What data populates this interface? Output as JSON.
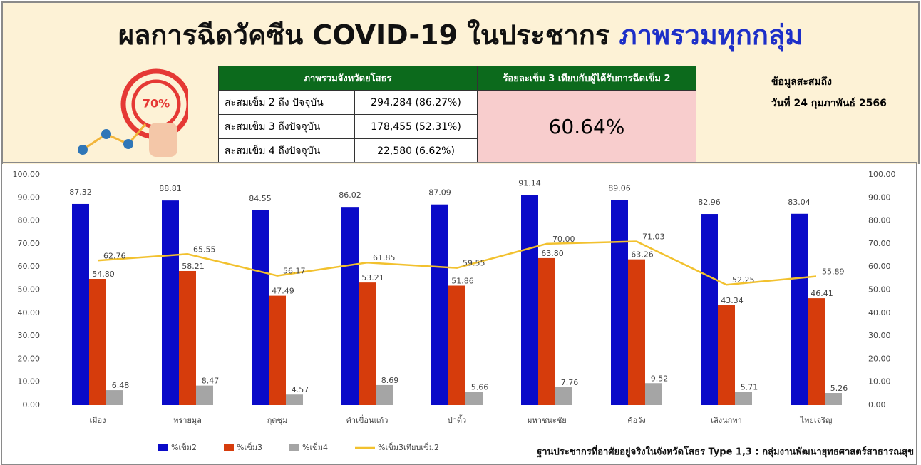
{
  "header": {
    "title_main": "ผลการฉีดวัคซีน COVID-19 ในประชากร",
    "title_highlight": "ภาพรวมทุกกลุ่ม",
    "icon_text": "70%",
    "date_line1": "ข้อมูลสะสมถึง",
    "date_line2": "วันที่ 24 กุมภาพันธ์ 2566"
  },
  "table": {
    "header": [
      "ภาพรวมจังหวัดยโสธร",
      "ร้อยละเข็ม 3 เทียบกับผู้ได้รับการฉีดเข็ม 2"
    ],
    "rows": [
      [
        "สะสมเข็ม 2 ถึง ปัจจุบัน",
        "294,284 (86.27%)"
      ],
      [
        "สะสมเข็ม 3 ถึงปัจจุบัน",
        "178,455 (52.31%)"
      ],
      [
        "สะสมเข็ม 4 ถึงปัจจุบัน",
        "22,580 (6.62%)"
      ]
    ],
    "highlight": "60.64%"
  },
  "chart_data": {
    "type": "bar",
    "categories": [
      "เมือง",
      "ทรายมูล",
      "กุดชุม",
      "คำเขื่อนแก้ว",
      "ป่าติ้ว",
      "มหาชนะชัย",
      "ค้อวัง",
      "เลิงนกทา",
      "ไทยเจริญ"
    ],
    "series": [
      {
        "name": "%เข็ม2",
        "color": "#0a0ac8",
        "values": [
          87.32,
          88.81,
          84.55,
          86.02,
          87.09,
          91.14,
          89.06,
          82.96,
          83.04
        ]
      },
      {
        "name": "%เข็ม3",
        "color": "#d63c0c",
        "values": [
          54.8,
          58.21,
          47.49,
          53.21,
          51.86,
          63.8,
          63.26,
          43.34,
          46.41
        ],
        "value_labels": [
          "54.80",
          "58.21",
          "47.49",
          "53.21",
          "51.86",
          "63.80",
          "63.26",
          "43.34",
          "46.41"
        ]
      },
      {
        "name": "%เข็ม4",
        "color": "#a5a5a5",
        "values": [
          6.48,
          8.47,
          4.57,
          8.69,
          5.66,
          7.76,
          9.52,
          5.71,
          5.26
        ]
      },
      {
        "name": "%เข็ม3เทียบเข็ม2",
        "color": "#f2c12e",
        "type": "line",
        "axis": "y2",
        "values": [
          62.76,
          65.55,
          56.17,
          61.85,
          59.55,
          70,
          71.03,
          52.25,
          55.89
        ],
        "value_labels": [
          "62.76",
          "65.55",
          "56.17",
          "61.85",
          "59.55",
          "70.00",
          "71.03",
          "52.25",
          "55.89"
        ]
      }
    ],
    "ylim": [
      0,
      100
    ],
    "yticks": [
      {
        "value": 0,
        "label": "0.00"
      },
      {
        "value": 10,
        "label": "10.00"
      },
      {
        "value": 20,
        "label": "20.00"
      },
      {
        "value": 30,
        "label": "30.00"
      },
      {
        "value": 40,
        "label": "40.00"
      },
      {
        "value": 50,
        "label": "50.00"
      },
      {
        "value": 60,
        "label": "60.00"
      },
      {
        "value": 70,
        "label": "70.00"
      },
      {
        "value": 80,
        "label": "80.00"
      },
      {
        "value": 90,
        "label": "90.00"
      },
      {
        "value": 100,
        "label": "100.00"
      }
    ],
    "y2lim": [
      0,
      100
    ],
    "y2ticks": [
      {
        "value": 0,
        "label": "0.00"
      },
      {
        "value": 10,
        "label": "10.00"
      },
      {
        "value": 20,
        "label": "20.00"
      },
      {
        "value": 30,
        "label": "30.00"
      },
      {
        "value": 40,
        "label": "40.00"
      },
      {
        "value": 50,
        "label": "50.00"
      },
      {
        "value": 60,
        "label": "60.00"
      },
      {
        "value": 70,
        "label": "70.00"
      },
      {
        "value": 80,
        "label": "80.00"
      },
      {
        "value": 90,
        "label": "90.00"
      },
      {
        "value": 100,
        "label": "100.00"
      }
    ],
    "grid": false,
    "legend": "bottom",
    "footnote": "ฐานประชากรที่อาศัยอยู่จริงในจังหวัดโสธร Type 1,3 : กลุ่มงานพัฒนายุทธศาสตร์สาธารณสุข"
  }
}
